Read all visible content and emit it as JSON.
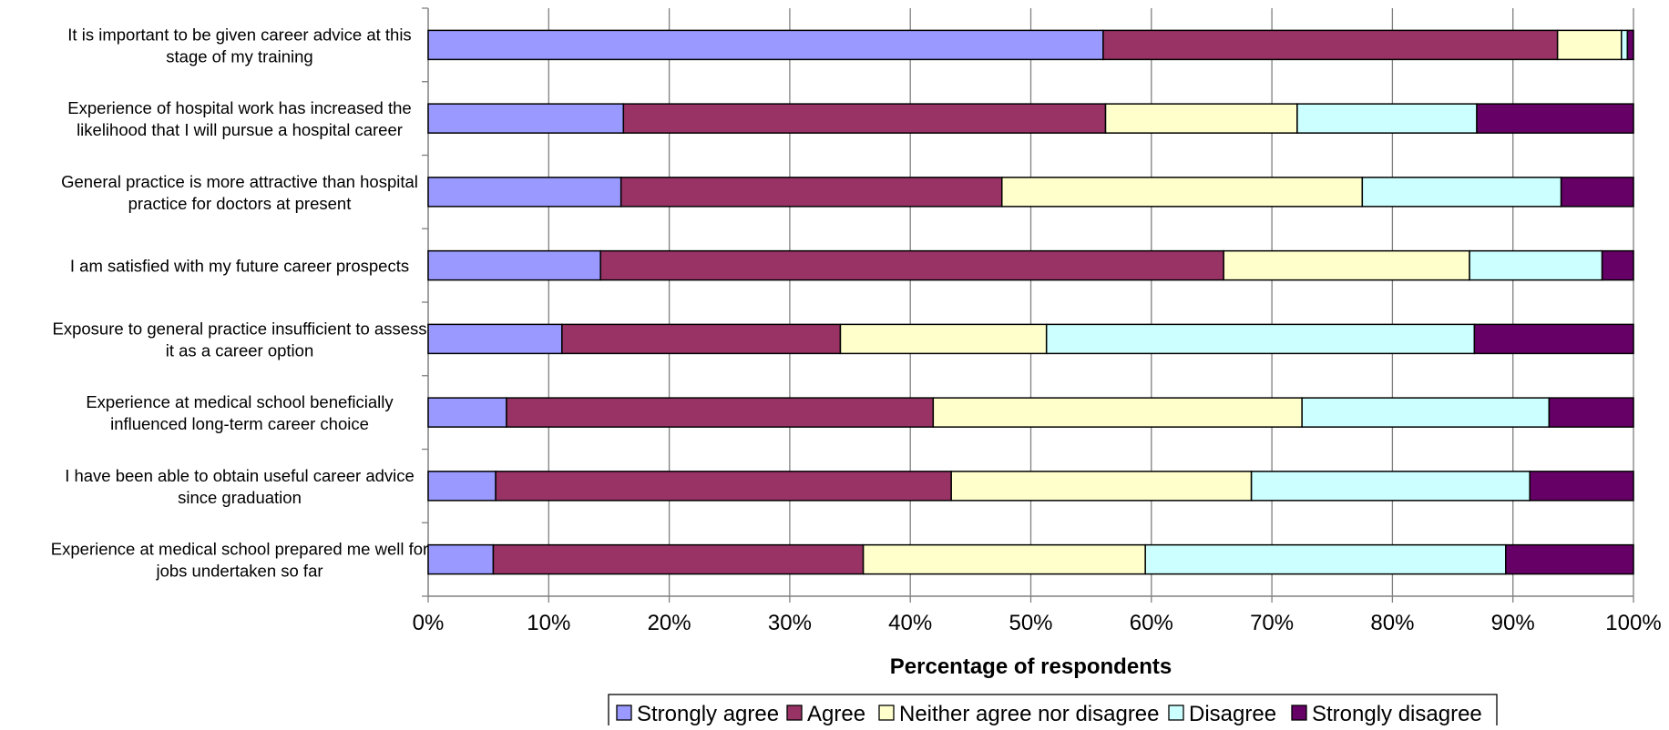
{
  "chart_data": {
    "type": "bar",
    "orientation": "horizontal",
    "stacked": "percent",
    "title": "",
    "xlabel": "Percentage of respondents",
    "ylabel": "",
    "xlim": [
      0,
      100
    ],
    "x_ticks": [
      "0%",
      "10%",
      "20%",
      "30%",
      "40%",
      "50%",
      "60%",
      "70%",
      "80%",
      "90%",
      "100%"
    ],
    "grid": "vertical",
    "legend_position": "bottom",
    "categories": [
      [
        "It is important to be given career advice at this",
        "stage of my training"
      ],
      [
        "Experience of hospital work has increased the",
        "likelihood that I will pursue a hospital career"
      ],
      [
        "General practice is more attractive than hospital",
        "practice for doctors at present"
      ],
      [
        "I am satisfied with my future career prospects"
      ],
      [
        "Exposure to general practice insufficient to assess",
        "it as a career option"
      ],
      [
        "Experience at medical school beneficially",
        "influenced long-term career choice"
      ],
      [
        "I have been able to obtain useful career advice",
        "since graduation"
      ],
      [
        "Experience at medical school prepared me well for",
        "jobs undertaken so far"
      ]
    ],
    "series": [
      {
        "name": "Strongly agree",
        "color": "#9999ff",
        "values": [
          56.0,
          16.2,
          16.0,
          14.3,
          11.1,
          6.5,
          5.6,
          5.4
        ]
      },
      {
        "name": "Agree",
        "color": "#993366",
        "values": [
          37.7,
          40.0,
          31.6,
          51.7,
          23.1,
          35.4,
          37.8,
          30.7
        ]
      },
      {
        "name": "Neither agree nor disagree",
        "color": "#ffffcc",
        "values": [
          5.3,
          15.9,
          29.9,
          20.4,
          17.1,
          30.6,
          24.9,
          23.4
        ]
      },
      {
        "name": "Disagree",
        "color": "#ccffff",
        "values": [
          0.5,
          14.9,
          16.5,
          11.0,
          35.5,
          20.5,
          23.1,
          29.9
        ]
      },
      {
        "name": "Strongly disagree",
        "color": "#660066",
        "values": [
          0.5,
          13.0,
          6.0,
          2.6,
          13.2,
          7.0,
          8.6,
          10.6
        ]
      }
    ]
  }
}
